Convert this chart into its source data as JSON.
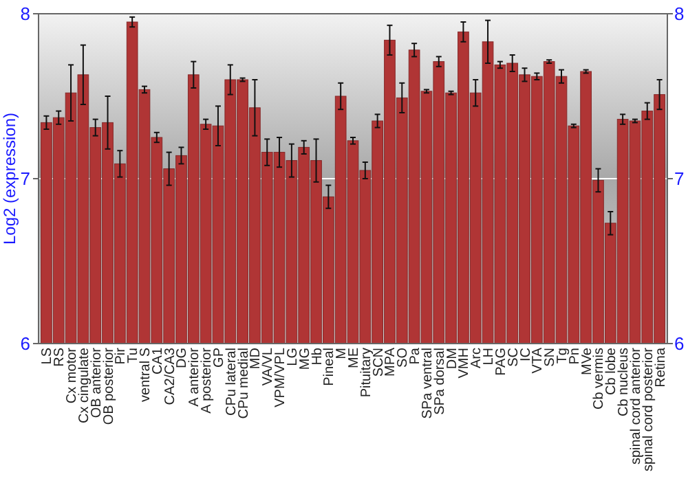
{
  "chart_data": {
    "type": "bar",
    "ylabel": "Log2 (expression)",
    "categories": [
      "LS",
      "RS",
      "Cx motor",
      "Cx cingulate",
      "OB anterior",
      "OB posterior",
      "Pir",
      "Tu",
      "ventral S",
      "CA1",
      "CA2/CA3",
      "DG",
      "A anterior",
      "A posterior",
      "GP",
      "CPu lateral",
      "CPu medial",
      "MD",
      "VA/VL",
      "VPM/VPL",
      "LG",
      "MG",
      "Hb",
      "Pineal",
      "M",
      "ME",
      "Pituitary",
      "SCN",
      "MPA",
      "SO",
      "Pa",
      "SPa ventral",
      "SPa dorsal",
      "DM",
      "VMH",
      "Arc",
      "LH",
      "PAG",
      "SC",
      "IC",
      "VTA",
      "SN",
      "Tg",
      "Pn",
      "MVe",
      "Cb vermis",
      "Cb lobe",
      "Cb nucleus",
      "spinal cord anterior",
      "spinal cord posterior",
      "Retina"
    ],
    "values": [
      7.34,
      7.37,
      7.52,
      7.63,
      7.31,
      7.34,
      7.09,
      7.95,
      7.54,
      7.25,
      7.06,
      7.14,
      7.63,
      7.33,
      7.32,
      7.6,
      7.6,
      7.43,
      7.16,
      7.16,
      7.11,
      7.19,
      7.11,
      6.89,
      7.5,
      7.23,
      7.05,
      7.35,
      7.84,
      7.49,
      7.78,
      7.53,
      7.71,
      7.52,
      7.89,
      7.52,
      7.83,
      7.69,
      7.7,
      7.63,
      7.62,
      7.71,
      7.62,
      7.32,
      7.65,
      6.99,
      6.73,
      7.36,
      7.35,
      7.41,
      7.51
    ],
    "errors": [
      0.04,
      0.04,
      0.17,
      0.18,
      0.05,
      0.16,
      0.08,
      0.03,
      0.02,
      0.03,
      0.1,
      0.05,
      0.08,
      0.03,
      0.12,
      0.09,
      0.01,
      0.17,
      0.08,
      0.09,
      0.1,
      0.04,
      0.13,
      0.07,
      0.08,
      0.02,
      0.05,
      0.04,
      0.09,
      0.09,
      0.04,
      0.01,
      0.03,
      0.01,
      0.06,
      0.08,
      0.13,
      0.02,
      0.05,
      0.04,
      0.02,
      0.01,
      0.04,
      0.01,
      0.01,
      0.07,
      0.07,
      0.03,
      0.01,
      0.05,
      0.09
    ],
    "color": "#b03535",
    "ylim": [
      6,
      8
    ],
    "yticks": [
      6,
      7,
      8
    ],
    "y2lim": [
      6,
      8
    ],
    "y2ticks": [
      6,
      7,
      8
    ],
    "grid": "y"
  }
}
